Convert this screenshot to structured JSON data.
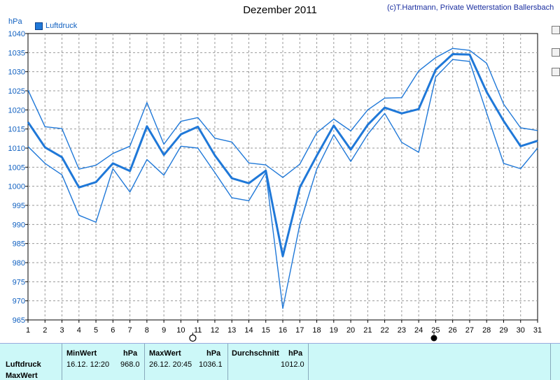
{
  "header": {
    "title": "Dezember 2011",
    "credit": "(c)T.Hartmann, Private Wetterstation Ballersbach",
    "unit": "hPa",
    "legend_label": "Luftdruck"
  },
  "colors": {
    "line": "#1f78d8",
    "grid": "#9a9a9a",
    "stats_bg": "#ccf8f8"
  },
  "moon_phases": [
    {
      "day": 10.7,
      "phase": "first-quarter-icon"
    },
    {
      "day": 24.9,
      "phase": "full-moon-icon"
    }
  ],
  "chart_data": {
    "type": "line",
    "title": "Dezember 2011",
    "ylabel": "hPa",
    "ylim": [
      965,
      1040
    ],
    "yticks": [
      965,
      970,
      975,
      980,
      985,
      990,
      995,
      1000,
      1005,
      1010,
      1015,
      1020,
      1025,
      1030,
      1035,
      1040
    ],
    "x": [
      1,
      2,
      3,
      4,
      5,
      6,
      7,
      8,
      9,
      10,
      11,
      12,
      13,
      14,
      15,
      16,
      17,
      18,
      19,
      20,
      21,
      22,
      23,
      24,
      25,
      26,
      27,
      28,
      29,
      30,
      31
    ],
    "grid": true,
    "legend_position": "top-left",
    "series": [
      {
        "name": "Luftdruck",
        "role": "max",
        "width": 1.4,
        "values": [
          1025.2,
          1015.6,
          1015.1,
          1004.5,
          1005.5,
          1008.6,
          1010.5,
          1021.9,
          1011.0,
          1017.0,
          1018.0,
          1012.6,
          1011.6,
          1006.1,
          1005.6,
          1002.3,
          1005.8,
          1014.0,
          1017.6,
          1014.5,
          1020.0,
          1023.1,
          1023.2,
          1030.2,
          1033.7,
          1036.1,
          1035.6,
          1032.2,
          1021.5,
          1015.3,
          1014.6
        ]
      },
      {
        "name": "Luftdruck",
        "role": "mean",
        "width": 3,
        "values": [
          1016.8,
          1010.2,
          1007.6,
          999.7,
          1001.1,
          1006.0,
          1004.0,
          1015.7,
          1008.2,
          1013.6,
          1015.6,
          1008.1,
          1002.1,
          1000.8,
          1004.1,
          981.7,
          999.7,
          1008.0,
          1015.9,
          1009.6,
          1016.1,
          1020.6,
          1019.1,
          1020.2,
          1030.5,
          1034.6,
          1034.5,
          1024.7,
          1017.1,
          1010.5,
          1011.9
        ]
      },
      {
        "name": "Luftdruck",
        "role": "min",
        "width": 1.4,
        "values": [
          1010.4,
          1006.0,
          1003.0,
          992.4,
          990.6,
          1004.6,
          998.5,
          1007.0,
          1002.9,
          1010.5,
          1010.0,
          1003.6,
          997.0,
          996.2,
          1003.6,
          968.0,
          990.0,
          1004.5,
          1013.5,
          1006.5,
          1013.6,
          1019.1,
          1011.5,
          1008.9,
          1028.6,
          1033.2,
          1032.7,
          1019.2,
          1006.0,
          1004.6,
          1010.0
        ]
      }
    ]
  },
  "stats": {
    "row_label": "Luftdruck",
    "row_label2": "MaxWert",
    "min": {
      "header": "MinWert",
      "unit": "hPa",
      "time": "16.12.  12:20",
      "value": "968.0"
    },
    "max": {
      "header": "MaxWert",
      "unit": "hPa",
      "time": "26.12.  20:45",
      "value": "1036.1"
    },
    "avg": {
      "header": "Durchschnitt",
      "unit": "hPa",
      "value": "1012.0"
    }
  }
}
